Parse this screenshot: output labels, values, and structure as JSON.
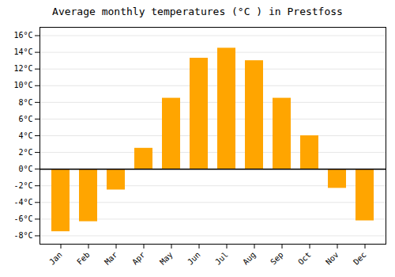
{
  "chart_data": {
    "type": "bar",
    "title": "Average monthly temperatures (°C ) in Prestfoss",
    "categories": [
      "Jan",
      "Feb",
      "Mar",
      "Apr",
      "May",
      "Jun",
      "Jul",
      "Aug",
      "Sep",
      "Oct",
      "Nov",
      "Dec"
    ],
    "values": [
      -7.5,
      -6.3,
      -2.5,
      2.5,
      8.5,
      13.3,
      14.5,
      13.0,
      8.5,
      4.0,
      -2.3,
      -6.2
    ],
    "color": "#FFA500",
    "ylim": [
      -9,
      17
    ],
    "yticks": [
      {
        "value": -8,
        "label": "-8°C"
      },
      {
        "value": -6,
        "label": "-6°C"
      },
      {
        "value": -4,
        "label": "-4°C"
      },
      {
        "value": -2,
        "label": "-2°C"
      },
      {
        "value": 0,
        "label": "0°C"
      },
      {
        "value": 2,
        "label": "2°C"
      },
      {
        "value": 4,
        "label": "4°C"
      },
      {
        "value": 6,
        "label": "6°C"
      },
      {
        "value": 8,
        "label": "8°C"
      },
      {
        "value": 10,
        "label": "10°C"
      },
      {
        "value": 12,
        "label": "12°C"
      },
      {
        "value": 14,
        "label": "14°C"
      },
      {
        "value": 16,
        "label": "16°C"
      }
    ],
    "grid": true
  }
}
